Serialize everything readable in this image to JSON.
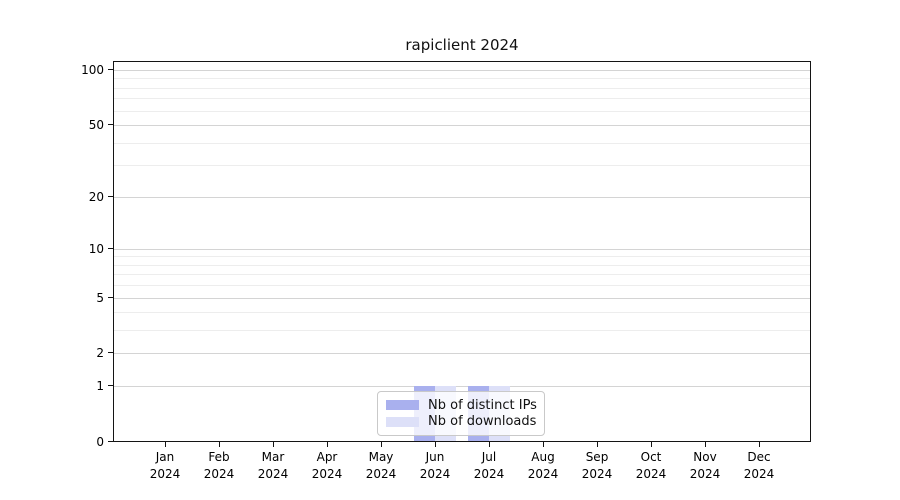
{
  "figure_title": "rapiclient 2024",
  "chart_data": {
    "type": "bar",
    "title": "rapiclient 2024",
    "x_tick_months": [
      "Jan",
      "Feb",
      "Mar",
      "Apr",
      "May",
      "Jun",
      "Jul",
      "Aug",
      "Sep",
      "Oct",
      "Nov",
      "Dec"
    ],
    "x_tick_year": "2024",
    "series": [
      {
        "name": "Nb of distinct IPs",
        "color": "#a9b0ee",
        "values": [
          0,
          0,
          0,
          0,
          0,
          1,
          1,
          0,
          0,
          0,
          0,
          0
        ]
      },
      {
        "name": "Nb of downloads",
        "color": "#dde0f8",
        "values": [
          0,
          0,
          0,
          0,
          0,
          1,
          1,
          0,
          0,
          0,
          0,
          0
        ]
      }
    ],
    "yscale": "log1p",
    "ylim": [
      0,
      105
    ],
    "y_tick_values": [
      0,
      1,
      2,
      5,
      10,
      20,
      50,
      100
    ],
    "y_minor_gridline_values": [
      3,
      4,
      6,
      7,
      8,
      9,
      30,
      40,
      60,
      70,
      80,
      90
    ],
    "grid": true,
    "legend_position": "lower center",
    "axis_color": "#141414",
    "grid_major_color": "#d4d4d4",
    "grid_minor_color": "#ededed"
  }
}
